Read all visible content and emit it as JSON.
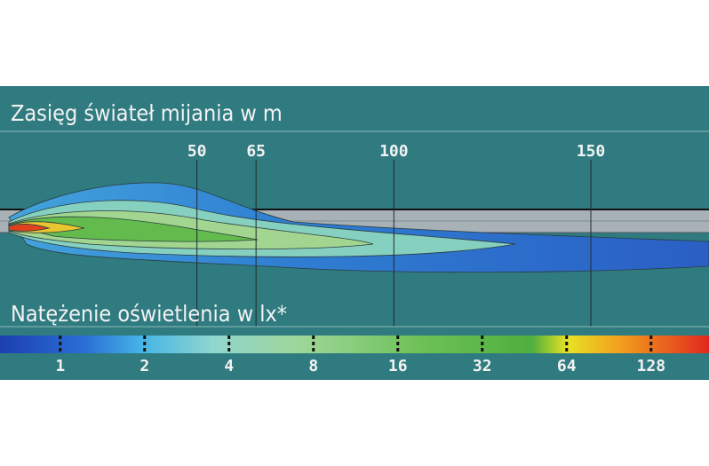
{
  "chart_data": {
    "type": "beam-map",
    "title": "Zasięg świateł mijania w m",
    "xlim": [
      0,
      180
    ],
    "xticks": [
      50,
      65,
      100,
      150
    ],
    "colorbar": {
      "label": "Natężenie oświetlenia w lx*",
      "log": true,
      "lim": [
        0.61,
        206
      ],
      "ticks": [
        1,
        2,
        4,
        8,
        16,
        32,
        64,
        128
      ]
    }
  }
}
